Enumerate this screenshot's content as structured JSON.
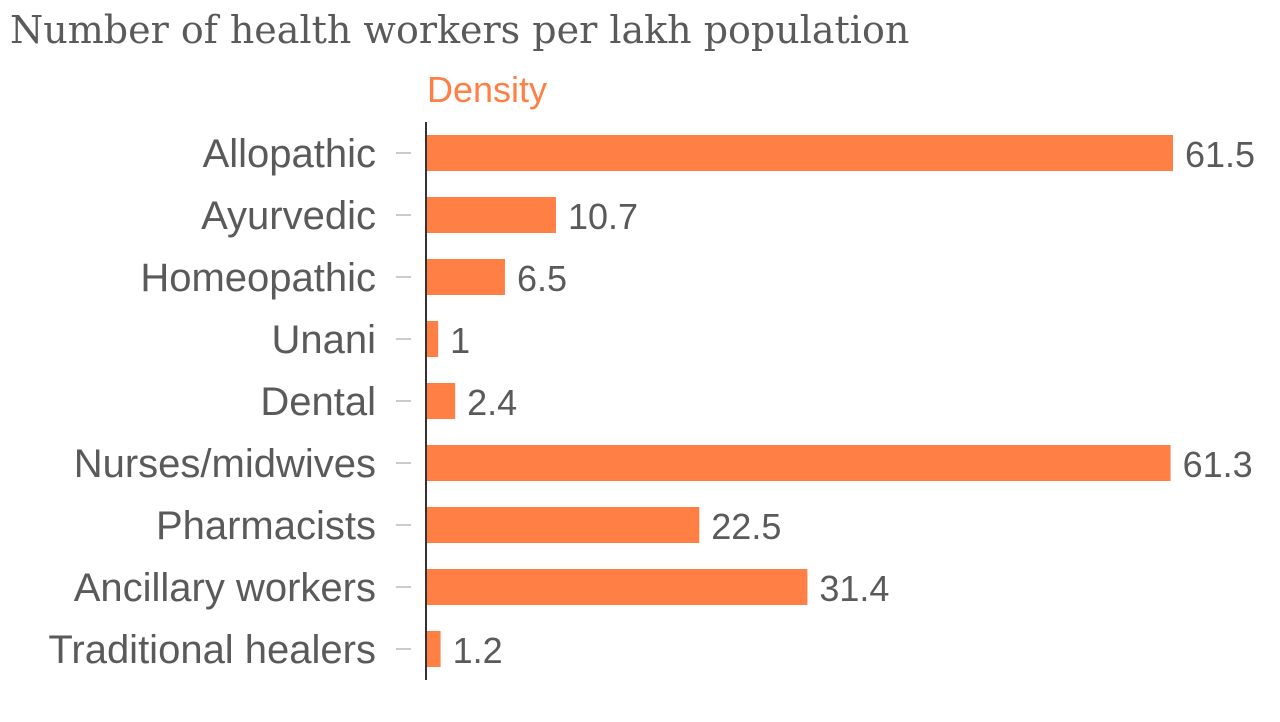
{
  "colors": {
    "bar": "#ff7f44",
    "series_label": "#ff7f44",
    "text": "#5a5a5a",
    "axis": "#333333",
    "tick": "#cccccc"
  },
  "chart_data": {
    "type": "bar",
    "orientation": "horizontal",
    "title": "Number of health workers per lakh population",
    "series": [
      {
        "name": "Density",
        "values": [
          61.5,
          10.7,
          6.5,
          1,
          2.4,
          61.3,
          22.5,
          31.4,
          1.2
        ],
        "value_labels": [
          "61.5",
          "10.7",
          "6.5",
          "1",
          "2.4",
          "61.3",
          "22.5",
          "31.4",
          "1.2"
        ]
      }
    ],
    "categories": [
      "Allopathic",
      "Ayurvedic",
      "Homeopathic",
      "Unani",
      "Dental",
      "Nurses/midwives",
      "Pharmacists",
      "Ancillary workers",
      "Traditional healers"
    ],
    "xlim": [
      0,
      61.5
    ],
    "grid": false,
    "legend": "none"
  }
}
